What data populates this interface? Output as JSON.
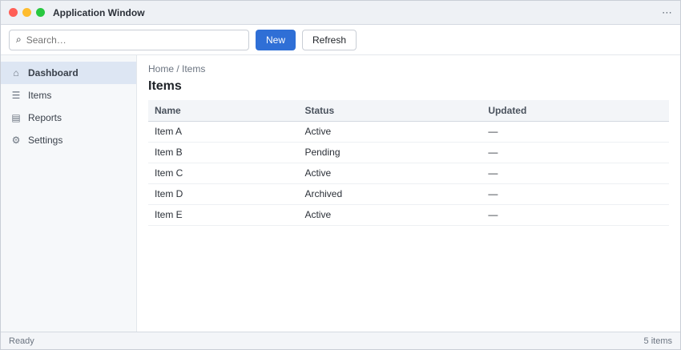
{
  "app": {
    "title": "Application Window"
  },
  "colors": {
    "accent": "#2f6fd6"
  },
  "toolbar": {
    "search_placeholder": "Search…",
    "search_value": "",
    "primary_label": "New",
    "secondary_label": "Refresh"
  },
  "sidebar": {
    "items": [
      {
        "label": "Dashboard",
        "icon": "home-icon"
      },
      {
        "label": "Items",
        "icon": "list-icon"
      },
      {
        "label": "Reports",
        "icon": "chart-icon"
      },
      {
        "label": "Settings",
        "icon": "gear-icon"
      }
    ]
  },
  "main": {
    "breadcrumb": "Home / Items",
    "title": "Items",
    "columns": [
      "Name",
      "Status",
      "Updated"
    ],
    "rows": [
      [
        "Item A",
        "Active",
        "—"
      ],
      [
        "Item B",
        "Pending",
        "—"
      ],
      [
        "Item C",
        "Active",
        "—"
      ],
      [
        "Item D",
        "Archived",
        "—"
      ],
      [
        "Item E",
        "Active",
        "—"
      ]
    ]
  },
  "status": {
    "left": "Ready",
    "right": "5 items"
  }
}
